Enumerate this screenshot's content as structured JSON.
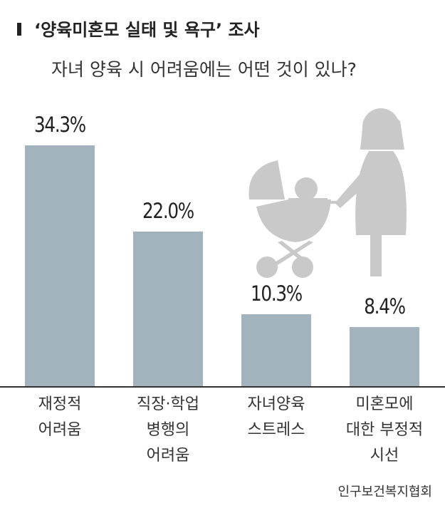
{
  "chart_data": {
    "type": "bar",
    "title": "‘양육미혼모 실태 및 욕구’ 조사",
    "subtitle": "자녀 양육 시 어려움에는 어떤 것이 있나?",
    "categories": [
      "재정적\n어려움",
      "직장·학업\n병행의\n어려움",
      "자녀양육\n스트레스",
      "미혼모에\n대한 부정적\n시선"
    ],
    "values": [
      34.3,
      22.0,
      10.3,
      8.4
    ],
    "value_labels": [
      "34.3%",
      "22.0%",
      "10.3%",
      "8.4%"
    ],
    "color": "#a3b3bd",
    "source": "인구보건복지협회"
  }
}
